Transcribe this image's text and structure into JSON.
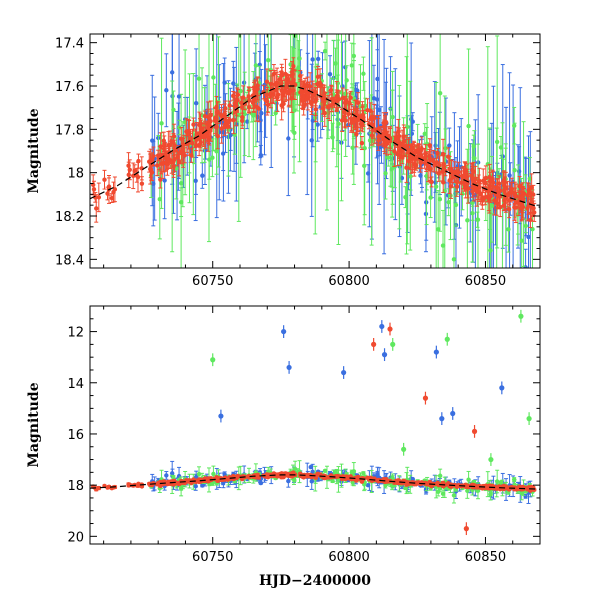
{
  "chart_data": [
    {
      "type": "scatter",
      "panel": "top",
      "title": "",
      "xlabel": "",
      "ylabel": "Magnitude",
      "xlim": [
        60705,
        60870
      ],
      "ylim": [
        18.44,
        17.36
      ],
      "y_inverted": true,
      "xticks": [
        60750,
        60800,
        60850
      ],
      "xtick_labels": [
        "60750",
        "60800",
        "60850"
      ],
      "yticks": [
        17.4,
        17.6,
        17.8,
        18.0,
        18.2,
        18.4
      ],
      "ytick_labels": [
        "17.4",
        "17.6",
        "17.8",
        "18",
        "18.2",
        "18.4"
      ],
      "grid": false,
      "legend": "none",
      "series": [
        {
          "color": "#3a6fe0",
          "marker": "circle",
          "error_bars": true,
          "x_range": [
            60727,
            60868
          ],
          "y_scatter": 0.18
        },
        {
          "color": "#5fe85f",
          "marker": "circle",
          "error_bars": true,
          "x_range": [
            60727,
            60868
          ],
          "y_scatter": 0.22
        },
        {
          "color": "#f04a30",
          "marker": "circle",
          "error_bars": true,
          "x_range": [
            60706,
            60868
          ],
          "y_scatter": 0.06
        }
      ],
      "model_curve": {
        "style": "dashed",
        "color": "#000000",
        "x": [
          60705,
          60715,
          60725,
          60735,
          60745,
          60755,
          60765,
          60775,
          60780,
          60785,
          60795,
          60805,
          60815,
          60825,
          60835,
          60845,
          60855,
          60865,
          60870
        ],
        "y": [
          18.12,
          18.06,
          17.98,
          17.9,
          17.83,
          17.74,
          17.65,
          17.6,
          17.6,
          17.62,
          17.68,
          17.76,
          17.85,
          17.93,
          17.99,
          18.05,
          18.1,
          18.14,
          18.16
        ]
      }
    },
    {
      "type": "scatter",
      "panel": "bottom",
      "title": "",
      "xlabel": "HJD−2400000",
      "ylabel": "Magnitude",
      "xlim": [
        60705,
        60870
      ],
      "ylim": [
        20.3,
        11.0
      ],
      "y_inverted": true,
      "xticks": [
        60750,
        60800,
        60850
      ],
      "xtick_labels": [
        "60750",
        "60800",
        "60850"
      ],
      "yticks": [
        12,
        14,
        16,
        18,
        20
      ],
      "ytick_labels": [
        "12",
        "14",
        "16",
        "18",
        "20"
      ],
      "grid": false,
      "legend": "none",
      "outliers": [
        {
          "series": 0,
          "x": 60753,
          "y": 15.3
        },
        {
          "series": 0,
          "x": 60776,
          "y": 12.0
        },
        {
          "series": 0,
          "x": 60778,
          "y": 13.4
        },
        {
          "series": 0,
          "x": 60798,
          "y": 13.6
        },
        {
          "series": 0,
          "x": 60812,
          "y": 11.8
        },
        {
          "series": 0,
          "x": 60813,
          "y": 12.9
        },
        {
          "series": 0,
          "x": 60832,
          "y": 12.8
        },
        {
          "series": 0,
          "x": 60834,
          "y": 15.4
        },
        {
          "series": 0,
          "x": 60838,
          "y": 15.2
        },
        {
          "series": 0,
          "x": 60856,
          "y": 14.2
        },
        {
          "series": 1,
          "x": 60750,
          "y": 13.1
        },
        {
          "series": 1,
          "x": 60816,
          "y": 12.5
        },
        {
          "series": 1,
          "x": 60820,
          "y": 16.6
        },
        {
          "series": 1,
          "x": 60836,
          "y": 12.3
        },
        {
          "series": 1,
          "x": 60852,
          "y": 17.0
        },
        {
          "series": 1,
          "x": 60863,
          "y": 11.4
        },
        {
          "series": 1,
          "x": 60866,
          "y": 15.4
        },
        {
          "series": 2,
          "x": 60809,
          "y": 12.5
        },
        {
          "series": 2,
          "x": 60815,
          "y": 11.9
        },
        {
          "series": 2,
          "x": 60828,
          "y": 14.6
        },
        {
          "series": 2,
          "x": 60846,
          "y": 15.9
        },
        {
          "series": 2,
          "x": 60843,
          "y": 19.7
        }
      ]
    }
  ]
}
